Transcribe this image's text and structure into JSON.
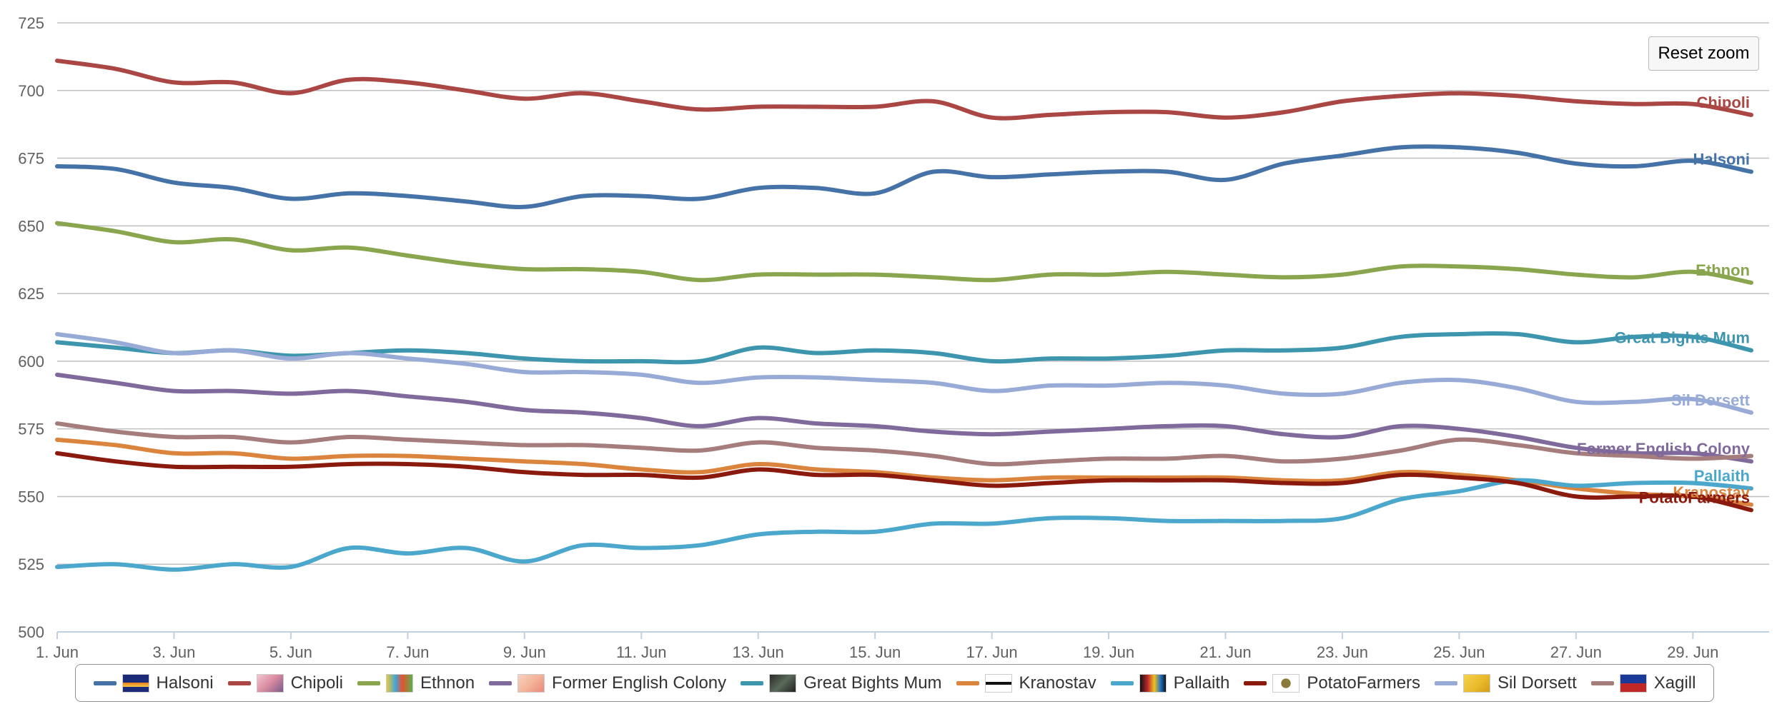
{
  "reset_zoom_label": "Reset zoom",
  "chart_data": {
    "type": "line",
    "title": "",
    "xlabel": "",
    "ylabel": "",
    "ylim": [
      500,
      725
    ],
    "y_ticks": [
      500,
      525,
      550,
      575,
      600,
      625,
      650,
      675,
      700,
      725
    ],
    "x": [
      "1. Jun",
      "2. Jun",
      "3. Jun",
      "4. Jun",
      "5. Jun",
      "6. Jun",
      "7. Jun",
      "8. Jun",
      "9. Jun",
      "10. Jun",
      "11. Jun",
      "12. Jun",
      "13. Jun",
      "14. Jun",
      "15. Jun",
      "16. Jun",
      "17. Jun",
      "18. Jun",
      "19. Jun",
      "20. Jun",
      "21. Jun",
      "22. Jun",
      "23. Jun",
      "24. Jun",
      "25. Jun",
      "26. Jun",
      "27. Jun",
      "28. Jun",
      "29. Jun",
      "30. Jun"
    ],
    "x_tick_labels": [
      "1. Jun",
      "3. Jun",
      "5. Jun",
      "7. Jun",
      "9. Jun",
      "11. Jun",
      "13. Jun",
      "15. Jun",
      "17. Jun",
      "19. Jun",
      "21. Jun",
      "23. Jun",
      "25. Jun",
      "27. Jun",
      "29. Jun"
    ],
    "legend_position": "bottom",
    "grid": true,
    "series": [
      {
        "name": "Halsoni",
        "color": "#4572a7",
        "flag": "sun-flag",
        "values": [
          672,
          671,
          666,
          664,
          660,
          662,
          661,
          659,
          657,
          661,
          661,
          660,
          664,
          664,
          662,
          670,
          668,
          669,
          670,
          670,
          667,
          673,
          676,
          679,
          679,
          677,
          673,
          672,
          674,
          670
        ]
      },
      {
        "name": "Chipoli",
        "color": "#aa4643",
        "flag": "pink-flag",
        "values": [
          711,
          708,
          703,
          703,
          699,
          704,
          703,
          700,
          697,
          699,
          696,
          693,
          694,
          694,
          694,
          696,
          690,
          691,
          692,
          692,
          690,
          692,
          696,
          698,
          699,
          698,
          696,
          695,
          695,
          691
        ]
      },
      {
        "name": "Ethnon",
        "color": "#89a54e",
        "flag": "rainbow-flag",
        "values": [
          651,
          648,
          644,
          645,
          641,
          642,
          639,
          636,
          634,
          634,
          633,
          630,
          632,
          632,
          632,
          631,
          630,
          632,
          632,
          633,
          632,
          631,
          632,
          635,
          635,
          634,
          632,
          631,
          633,
          629
        ]
      },
      {
        "name": "Former English Colony",
        "color": "#80699b",
        "flag": "peach-flag",
        "values": [
          595,
          592,
          589,
          589,
          588,
          589,
          587,
          585,
          582,
          581,
          579,
          576,
          579,
          577,
          576,
          574,
          573,
          574,
          575,
          576,
          576,
          573,
          572,
          576,
          575,
          572,
          568,
          566,
          566,
          563
        ]
      },
      {
        "name": "Great Bights Mum",
        "color": "#3d96ae",
        "flag": "dark-flag",
        "values": [
          607,
          605,
          603,
          604,
          602,
          603,
          604,
          603,
          601,
          600,
          600,
          600,
          605,
          603,
          604,
          603,
          600,
          601,
          601,
          602,
          604,
          604,
          605,
          609,
          610,
          610,
          607,
          609,
          609,
          604
        ]
      },
      {
        "name": "Kranostav",
        "color": "#db843d",
        "flag": "cross-flag",
        "values": [
          571,
          569,
          566,
          566,
          564,
          565,
          565,
          564,
          563,
          562,
          560,
          559,
          562,
          560,
          559,
          557,
          556,
          557,
          557,
          557,
          557,
          556,
          556,
          559,
          558,
          556,
          553,
          551,
          550,
          547
        ]
      },
      {
        "name": "Pallaith",
        "color": "#4ba8cc",
        "flag": "rainbow-dark-flag",
        "values": [
          524,
          525,
          523,
          525,
          524,
          531,
          529,
          531,
          526,
          532,
          531,
          532,
          536,
          537,
          537,
          540,
          540,
          542,
          542,
          541,
          541,
          541,
          542,
          549,
          552,
          556,
          554,
          555,
          555,
          553
        ]
      },
      {
        "name": "PotatoFarmers",
        "color": "#8b1a0e",
        "flag": "potato-flag",
        "values": [
          566,
          563,
          561,
          561,
          561,
          562,
          562,
          561,
          559,
          558,
          558,
          557,
          560,
          558,
          558,
          556,
          554,
          555,
          556,
          556,
          556,
          555,
          555,
          558,
          557,
          555,
          550,
          550,
          550,
          545
        ]
      },
      {
        "name": "Sil Dorsett",
        "color": "#98aad6",
        "flag": "gold-flag",
        "values": [
          610,
          607,
          603,
          604,
          601,
          603,
          601,
          599,
          596,
          596,
          595,
          592,
          594,
          594,
          593,
          592,
          589,
          591,
          591,
          592,
          591,
          588,
          588,
          592,
          593,
          590,
          585,
          585,
          586,
          581
        ]
      },
      {
        "name": "Xagill",
        "color": "#a47d7c",
        "flag": "blue-red-flag",
        "values": [
          577,
          574,
          572,
          572,
          570,
          572,
          571,
          570,
          569,
          569,
          568,
          567,
          570,
          568,
          567,
          565,
          562,
          563,
          564,
          564,
          565,
          563,
          564,
          567,
          571,
          569,
          566,
          565,
          564,
          565
        ]
      }
    ],
    "end_labels": [
      {
        "name": "Chipoli",
        "color": "#aa4643"
      },
      {
        "name": "Halsoni",
        "color": "#4572a7"
      },
      {
        "name": "Ethnon",
        "color": "#89a54e"
      },
      {
        "name": "Great Bights Mum",
        "color": "#3d96ae"
      },
      {
        "name": "Sil Dorsett",
        "color": "#98aad6"
      },
      {
        "name": "Former English Colony",
        "color": "#80699b"
      },
      {
        "name": "Pallaith",
        "color": "#4ba8cc"
      },
      {
        "name": "Kranostav",
        "color": "#db843d"
      },
      {
        "name": "PotatoFarmers",
        "color": "#8b1a0e"
      }
    ]
  }
}
